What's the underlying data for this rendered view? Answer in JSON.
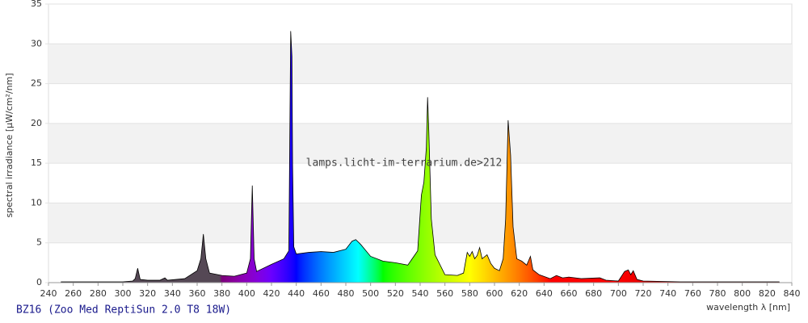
{
  "chart_data": {
    "type": "area",
    "ylabel": "spectral irradiance [µW/cm²/nm]",
    "xlabel": "wavelength λ [nm]",
    "watermark": "lamps.licht-im-terrarium.de>212",
    "caption": "BZ16 (Zoo Med ReptiSun 2.0 T8 18W)",
    "xlim": [
      240,
      840
    ],
    "ylim": [
      0,
      35
    ],
    "xticks": [
      240,
      260,
      280,
      300,
      320,
      340,
      360,
      380,
      400,
      420,
      440,
      460,
      480,
      500,
      520,
      540,
      560,
      580,
      600,
      620,
      640,
      660,
      680,
      700,
      720,
      740,
      760,
      780,
      800,
      820,
      840
    ],
    "yticks": [
      0,
      5,
      10,
      15,
      20,
      25,
      30,
      35
    ],
    "grid": true,
    "line_color": "#000000",
    "x": [
      250,
      300,
      308,
      310,
      312,
      314,
      320,
      330,
      334,
      336,
      350,
      360,
      363,
      365,
      367,
      370,
      380,
      390,
      400,
      403,
      404.5,
      406,
      408,
      420,
      430,
      434,
      435.5,
      436.5,
      437,
      438,
      440,
      450,
      460,
      470,
      480,
      485,
      488,
      492,
      500,
      510,
      520,
      530,
      538,
      541,
      543,
      545,
      546,
      547,
      549,
      552,
      560,
      570,
      575,
      578,
      580,
      582,
      584,
      586,
      588,
      590,
      594,
      597,
      600,
      604,
      607,
      609,
      611,
      613,
      615,
      618,
      622,
      626,
      629,
      631,
      636,
      645,
      650,
      655,
      660,
      670,
      685,
      690,
      700,
      705,
      708,
      710,
      712,
      715,
      720,
      750,
      800,
      830
    ],
    "values": [
      0.1,
      0.1,
      0.2,
      0.5,
      1.8,
      0.4,
      0.3,
      0.3,
      0.6,
      0.3,
      0.5,
      1.5,
      3,
      6.1,
      3,
      1.2,
      0.9,
      0.8,
      1.2,
      3,
      12.2,
      3,
      1.4,
      2.3,
      3.0,
      4,
      31.6,
      28.4,
      15,
      4.5,
      3.6,
      3.8,
      3.9,
      3.8,
      4.2,
      5.2,
      5.4,
      4.8,
      3.3,
      2.7,
      2.5,
      2.2,
      4,
      11,
      12.6,
      17,
      23.3,
      19,
      8,
      3.5,
      1.0,
      0.9,
      1.2,
      3.8,
      3.3,
      3.9,
      3,
      3.4,
      4.4,
      3,
      3.5,
      2.4,
      1.8,
      1.5,
      3,
      8,
      20.4,
      16,
      7,
      3,
      2.7,
      2.2,
      3.3,
      1.6,
      1.0,
      0.5,
      0.9,
      0.6,
      0.7,
      0.5,
      0.6,
      0.3,
      0.2,
      1.4,
      1.6,
      1.0,
      1.5,
      0.4,
      0.2,
      0.1,
      0.1,
      0.1
    ]
  }
}
